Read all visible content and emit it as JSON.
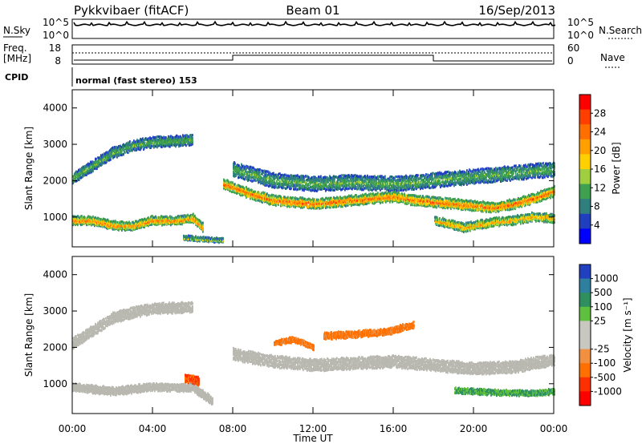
{
  "header": {
    "radar": "Pykkvibaer (fitACF)",
    "beam": "Beam 01",
    "date": "16/Sep/2013"
  },
  "top_panels": {
    "nsky_label": "N.Sky",
    "nsearch_label": "N.Search",
    "noise_ticks": [
      "10^5",
      "10^0"
    ],
    "freq_label_1": "Freq.",
    "freq_label_2": "[MHz]",
    "freq_ticks": [
      "18",
      "8"
    ],
    "nave_label": "Nave",
    "nave_ticks": [
      "60",
      "0"
    ],
    "cpid_label": "CPID",
    "cpid_text": "normal (fast stereo) 153"
  },
  "colors": {
    "power_scale": [
      "#0000ff",
      "#1f3fbf",
      "#2f7f7f",
      "#3fa04f",
      "#9fcf3f",
      "#ffcf00",
      "#ff9f00",
      "#ff6f00",
      "#ff3f00",
      "#ff0000"
    ],
    "velocity_scale": [
      "#2040c0",
      "#2f7f9f",
      "#2f8f5f",
      "#5fbf3f",
      "#c8c8c0",
      "#c8c8c0",
      "#f09040",
      "#ff7000",
      "#ff3000",
      "#ff0000"
    ],
    "ground_scatter": "#b8b8b0"
  },
  "chart_data": [
    {
      "type": "heatmap",
      "name": "power",
      "xlabel": "Time UT",
      "ylabel": "Slant Range [km]",
      "xlim": [
        0,
        24
      ],
      "ylim": [
        180,
        4500
      ],
      "x_ticks": [
        "00:00",
        "04:00",
        "08:00",
        "12:00",
        "16:00",
        "20:00",
        "00:00"
      ],
      "y_ticks": [
        "1000",
        "2000",
        "3000",
        "4000"
      ],
      "colorbar_label": "Power [dB]",
      "colorbar_ticks": [
        "28",
        "24",
        "20",
        "16",
        "12",
        "8",
        "4"
      ],
      "colorbar_range": [
        0,
        32
      ],
      "scatter_bands": [
        {
          "points": [
            [
              0,
              900
            ],
            [
              1,
              880
            ],
            [
              2,
              760
            ],
            [
              3,
              740
            ],
            [
              4,
              900
            ],
            [
              5,
              880
            ],
            [
              6,
              950
            ],
            [
              6.5,
              700
            ]
          ],
          "width": 220,
          "level": 24
        },
        {
          "points": [
            [
              0,
              2050
            ],
            [
              1,
              2400
            ],
            [
              2,
              2750
            ],
            [
              3,
              2950
            ],
            [
              4,
              3050
            ],
            [
              6,
              3100
            ]
          ],
          "width": 280,
          "level": 12
        },
        {
          "points": [
            [
              7.5,
              1900
            ],
            [
              8,
              1800
            ],
            [
              9,
              1600
            ],
            [
              10,
              1450
            ],
            [
              11,
              1400
            ],
            [
              12,
              1350
            ],
            [
              13,
              1400
            ],
            [
              14,
              1450
            ],
            [
              15,
              1500
            ],
            [
              16,
              1550
            ],
            [
              17,
              1450
            ],
            [
              18,
              1400
            ],
            [
              19,
              1350
            ],
            [
              20,
              1300
            ],
            [
              21,
              1250
            ],
            [
              22,
              1350
            ],
            [
              23,
              1500
            ],
            [
              24,
              1700
            ]
          ],
          "width": 260,
          "level": 26
        },
        {
          "points": [
            [
              8,
              2300
            ],
            [
              10,
              2000
            ],
            [
              12,
              1900
            ],
            [
              14,
              1950
            ],
            [
              16,
              1900
            ],
            [
              18,
              2000
            ],
            [
              20,
              2100
            ],
            [
              22,
              2200
            ],
            [
              24,
              2300
            ]
          ],
          "width": 400,
          "level": 12
        },
        {
          "points": [
            [
              18,
              900
            ],
            [
              19.5,
              700
            ],
            [
              21,
              850
            ],
            [
              22,
              900
            ],
            [
              23,
              1000
            ],
            [
              24,
              950
            ]
          ],
          "width": 220,
          "level": 22
        },
        {
          "points": [
            [
              5.5,
              420
            ],
            [
              6.5,
              380
            ],
            [
              7.5,
              350
            ]
          ],
          "width": 90,
          "level": 16
        }
      ]
    },
    {
      "type": "heatmap",
      "name": "velocity",
      "xlabel": "Time UT",
      "ylabel": "Slant Range [km]",
      "xlim": [
        0,
        24
      ],
      "ylim": [
        180,
        4500
      ],
      "x_ticks": [
        "00:00",
        "04:00",
        "08:00",
        "12:00",
        "16:00",
        "20:00",
        "00:00"
      ],
      "y_ticks": [
        "1000",
        "2000",
        "3000",
        "4000"
      ],
      "colorbar_label": "Velocity [m s⁻¹]",
      "colorbar_ticks": [
        "1000",
        "500",
        "100",
        "25",
        "-25",
        "-100",
        "-500",
        "-1000"
      ],
      "scatter_bands": [
        {
          "points": [
            [
              0,
              2100
            ],
            [
              1,
              2450
            ],
            [
              2,
              2800
            ],
            [
              3,
              2950
            ],
            [
              4,
              3050
            ],
            [
              6,
              3100
            ]
          ],
          "width": 280,
          "cat": "ground"
        },
        {
          "points": [
            [
              0,
              900
            ],
            [
              2,
              780
            ],
            [
              4,
              900
            ],
            [
              6,
              880
            ],
            [
              7,
              500
            ]
          ],
          "width": 200,
          "cat": "ground"
        },
        {
          "points": [
            [
              8,
              1800
            ],
            [
              10,
              1600
            ],
            [
              12,
              1500
            ],
            [
              14,
              1550
            ],
            [
              16,
              1600
            ],
            [
              18,
              1500
            ],
            [
              20,
              1400
            ],
            [
              22,
              1450
            ],
            [
              24,
              1650
            ]
          ],
          "width": 320,
          "cat": "ground"
        },
        {
          "points": [
            [
              19,
              800
            ],
            [
              21,
              750
            ],
            [
              23,
              720
            ],
            [
              24,
              780
            ]
          ],
          "width": 120,
          "cat": "green"
        },
        {
          "points": [
            [
              5.6,
              1150
            ],
            [
              6.0,
              1100
            ],
            [
              6.3,
              1050
            ]
          ],
          "width": 220,
          "cat": "red"
        },
        {
          "points": [
            [
              12.5,
              2300
            ],
            [
              14,
              2350
            ],
            [
              15.5,
              2400
            ],
            [
              17,
              2600
            ]
          ],
          "width": 160,
          "cat": "orange"
        },
        {
          "points": [
            [
              10,
              2100
            ],
            [
              11,
              2200
            ],
            [
              12,
              2000
            ]
          ],
          "width": 120,
          "cat": "orange"
        }
      ]
    }
  ]
}
